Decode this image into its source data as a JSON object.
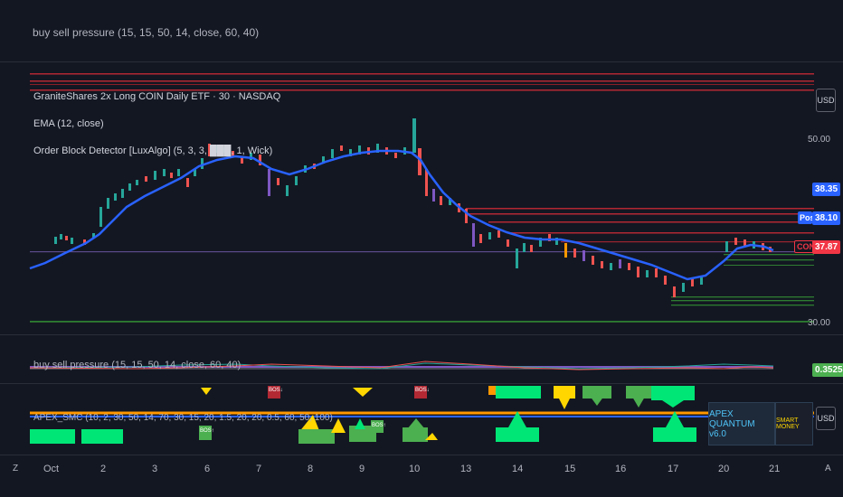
{
  "top_indicator": {
    "title": "buy sell pressure (15, 15, 50, 14, close, 60, 40)"
  },
  "main_pane": {
    "symbol_title": "GraniteShares 2x Long COIN Daily ETF · 30 · NASDAQ",
    "ema_legend": "EMA (12, close)",
    "ob_legend": "Order Block Detector [LuxAlgo] (5, 3, 3, ███, 1, Wick)",
    "currency": "USD",
    "price_labels": [
      "50.00",
      "30.00"
    ],
    "badges": {
      "ema_value": "38.35",
      "post_tag": "Post",
      "post_value": "38.10",
      "symbol_tag": "CONL",
      "last_price": "37.87"
    },
    "colors": {
      "ema": "#2962ff",
      "up": "#26a69a",
      "down": "#ef5350",
      "badge_blue": "#2962ff",
      "badge_red": "#f23645",
      "bearish_ob": "#b22833",
      "bullish_ob": "#2e7d32"
    }
  },
  "pressure_pane": {
    "legend": "buy sell pressure (15, 15, 50, 14, close, 60, 40)",
    "value": "0.3525"
  },
  "apex_pane": {
    "legend": "APEX_SMC (10, 2, 30, 50, 14, 70, 30, 15, 20, 1.5, 20, 20, 0.5, 60, 50, 100)",
    "currency": "USD",
    "brand_box": "APEX QUANTUM v6.0",
    "brand_tag": "SMART MONEY",
    "markers": [
      "BOS↑",
      "BOS↑",
      "BOS↓",
      "BOS↓"
    ]
  },
  "time_axis": {
    "labels": [
      "Oct",
      "2",
      "3",
      "6",
      "7",
      "8",
      "9",
      "10",
      "13",
      "14",
      "15",
      "16",
      "17",
      "20",
      "21"
    ],
    "left_icon": "Z",
    "right_icon": "A"
  }
}
